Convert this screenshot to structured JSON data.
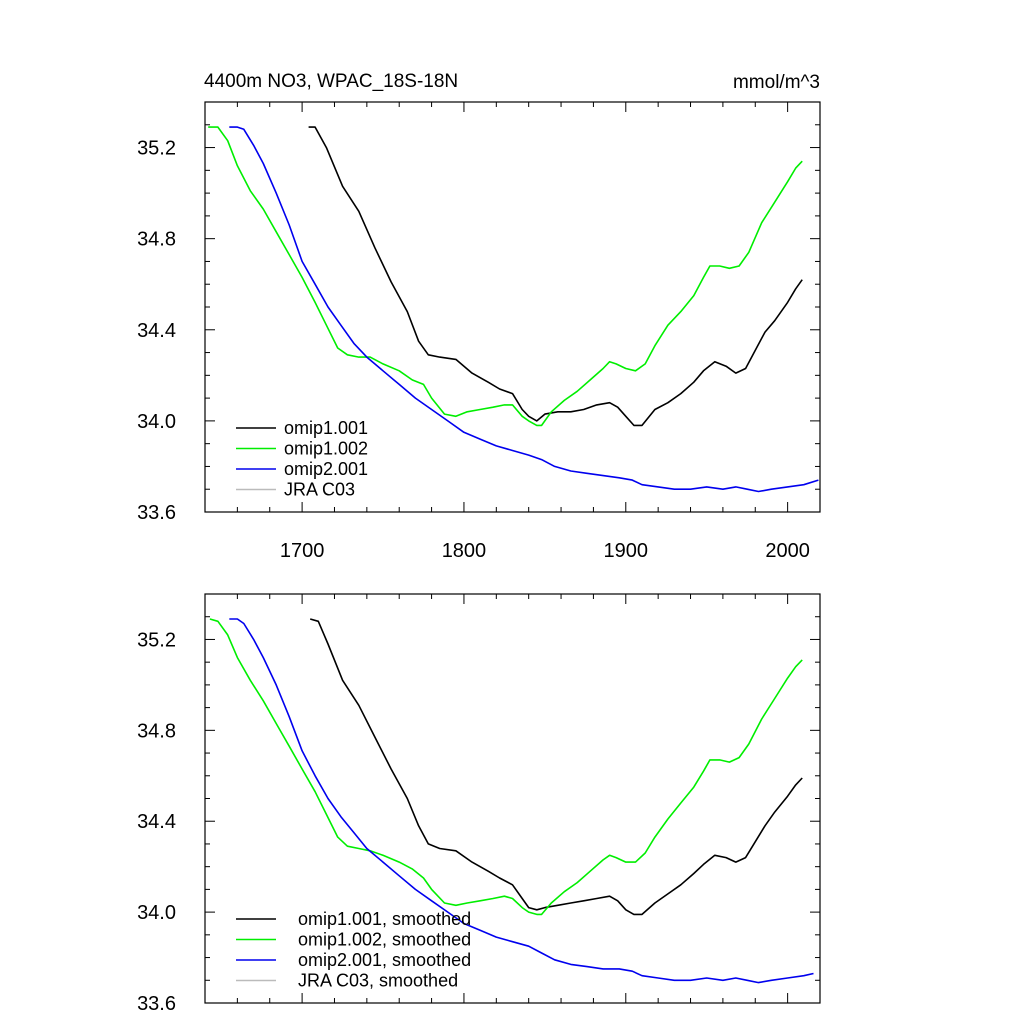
{
  "figure": {
    "title_left": "4400m NO3, WPAC_18S-18N",
    "title_right": "mmol/m^3"
  },
  "chart_data": [
    {
      "type": "line",
      "title": "4400m NO3, WPAC_18S-18N",
      "units": "mmol/m^3",
      "xlim": [
        1640,
        2020
      ],
      "ylim": [
        33.6,
        35.4
      ],
      "x_ticks": [
        1700,
        1800,
        1900,
        2000
      ],
      "x_tick_labels": [
        "1700",
        "1800",
        "1900",
        "2000"
      ],
      "y_ticks": [
        33.6,
        34.0,
        34.4,
        34.8,
        35.2
      ],
      "y_tick_labels": [
        "33.6",
        "34.0",
        "34.4",
        "34.8",
        "35.2"
      ],
      "grid": false,
      "legend_position": "bottom-left",
      "series": [
        {
          "name": "omip1.001",
          "color": "#000000",
          "x": [
            1704,
            1708,
            1715,
            1725,
            1735,
            1745,
            1755,
            1765,
            1772,
            1778,
            1785,
            1795,
            1805,
            1815,
            1822,
            1830,
            1836,
            1840,
            1845,
            1850,
            1858,
            1866,
            1874,
            1882,
            1890,
            1895,
            1900,
            1905,
            1910,
            1918,
            1926,
            1934,
            1942,
            1948,
            1955,
            1962,
            1968,
            1974,
            1980,
            1986,
            1992,
            2000,
            2005,
            2009
          ],
          "y": [
            35.29,
            35.29,
            35.2,
            35.03,
            34.92,
            34.76,
            34.61,
            34.48,
            34.35,
            34.29,
            34.28,
            34.27,
            34.21,
            34.17,
            34.14,
            34.12,
            34.05,
            34.02,
            34.0,
            34.03,
            34.04,
            34.04,
            34.05,
            34.07,
            34.08,
            34.06,
            34.02,
            33.98,
            33.98,
            34.05,
            34.08,
            34.12,
            34.17,
            34.22,
            34.26,
            34.24,
            34.21,
            34.23,
            34.31,
            34.39,
            34.44,
            34.52,
            34.58,
            34.62
          ]
        },
        {
          "name": "omip1.002",
          "color": "#00ee00",
          "x": [
            1642,
            1648,
            1654,
            1660,
            1668,
            1676,
            1684,
            1692,
            1700,
            1708,
            1715,
            1722,
            1728,
            1735,
            1742,
            1750,
            1760,
            1768,
            1775,
            1780,
            1788,
            1795,
            1802,
            1810,
            1818,
            1825,
            1830,
            1836,
            1840,
            1845,
            1848,
            1854,
            1862,
            1870,
            1878,
            1886,
            1890,
            1894,
            1900,
            1906,
            1912,
            1918,
            1926,
            1934,
            1942,
            1948,
            1952,
            1958,
            1964,
            1970,
            1976,
            1984,
            1992,
            2000,
            2005,
            2009
          ],
          "y": [
            35.29,
            35.29,
            35.23,
            35.12,
            35.01,
            34.93,
            34.83,
            34.73,
            34.63,
            34.52,
            34.42,
            34.32,
            34.29,
            34.28,
            34.28,
            34.25,
            34.22,
            34.18,
            34.16,
            34.1,
            34.03,
            34.02,
            34.04,
            34.05,
            34.06,
            34.07,
            34.07,
            34.02,
            34.0,
            33.98,
            33.98,
            34.04,
            34.09,
            34.13,
            34.18,
            34.23,
            34.26,
            34.25,
            34.23,
            34.22,
            34.25,
            34.33,
            34.42,
            34.48,
            34.55,
            34.63,
            34.68,
            34.68,
            34.67,
            34.68,
            34.74,
            34.87,
            34.96,
            35.05,
            35.11,
            35.14
          ]
        },
        {
          "name": "omip2.001",
          "color": "#0000ee",
          "x": [
            1655,
            1660,
            1664,
            1670,
            1676,
            1684,
            1692,
            1700,
            1708,
            1716,
            1724,
            1732,
            1740,
            1750,
            1760,
            1770,
            1780,
            1790,
            1800,
            1810,
            1820,
            1830,
            1840,
            1848,
            1856,
            1866,
            1876,
            1886,
            1896,
            1904,
            1910,
            1920,
            1930,
            1940,
            1950,
            1960,
            1968,
            1975,
            1982,
            1990,
            2000,
            2010,
            2019
          ],
          "y": [
            35.29,
            35.29,
            35.28,
            35.21,
            35.13,
            35.0,
            34.86,
            34.7,
            34.6,
            34.5,
            34.42,
            34.34,
            34.28,
            34.22,
            34.16,
            34.1,
            34.05,
            34.0,
            33.95,
            33.92,
            33.89,
            33.87,
            33.85,
            33.83,
            33.8,
            33.78,
            33.77,
            33.76,
            33.75,
            33.74,
            33.72,
            33.71,
            33.7,
            33.7,
            33.71,
            33.7,
            33.71,
            33.7,
            33.69,
            33.7,
            33.71,
            33.72,
            33.74
          ]
        },
        {
          "name": "JRA C03",
          "color": "#bbbbbb",
          "x": [],
          "y": []
        }
      ]
    },
    {
      "type": "line",
      "title": "",
      "xlim": [
        1640,
        2020
      ],
      "ylim": [
        33.6,
        35.4
      ],
      "x_ticks": [
        1700,
        1800,
        1900,
        2000
      ],
      "x_tick_labels": [],
      "y_ticks": [
        33.6,
        34.0,
        34.4,
        34.8,
        35.2
      ],
      "y_tick_labels": [
        "33.6",
        "34.0",
        "34.4",
        "34.8",
        "35.2"
      ],
      "grid": false,
      "legend_position": "bottom-left",
      "series": [
        {
          "name": "omip1.001, smoothed",
          "color": "#000000",
          "x": [
            1705,
            1710,
            1716,
            1725,
            1735,
            1745,
            1755,
            1765,
            1772,
            1778,
            1785,
            1795,
            1805,
            1815,
            1822,
            1830,
            1836,
            1840,
            1845,
            1850,
            1858,
            1866,
            1874,
            1882,
            1890,
            1895,
            1900,
            1905,
            1910,
            1918,
            1926,
            1934,
            1942,
            1948,
            1955,
            1962,
            1968,
            1974,
            1980,
            1986,
            1992,
            2000,
            2005,
            2009
          ],
          "y": [
            35.29,
            35.28,
            35.18,
            35.02,
            34.91,
            34.77,
            34.63,
            34.5,
            34.38,
            34.3,
            34.28,
            34.27,
            34.22,
            34.18,
            34.15,
            34.12,
            34.06,
            34.02,
            34.01,
            34.02,
            34.03,
            34.04,
            34.05,
            34.06,
            34.07,
            34.05,
            34.01,
            33.99,
            33.99,
            34.04,
            34.08,
            34.12,
            34.17,
            34.21,
            34.25,
            34.24,
            34.22,
            34.24,
            34.31,
            34.38,
            34.44,
            34.51,
            34.56,
            34.59
          ]
        },
        {
          "name": "omip1.002, smoothed",
          "color": "#00ee00",
          "x": [
            1643,
            1648,
            1654,
            1660,
            1668,
            1676,
            1684,
            1692,
            1700,
            1708,
            1715,
            1722,
            1728,
            1735,
            1742,
            1750,
            1760,
            1768,
            1775,
            1780,
            1788,
            1795,
            1802,
            1810,
            1818,
            1825,
            1830,
            1836,
            1840,
            1845,
            1848,
            1854,
            1862,
            1870,
            1878,
            1886,
            1890,
            1894,
            1900,
            1906,
            1912,
            1918,
            1926,
            1934,
            1942,
            1948,
            1952,
            1958,
            1964,
            1970,
            1976,
            1984,
            1992,
            2000,
            2005,
            2009
          ],
          "y": [
            35.29,
            35.28,
            35.22,
            35.12,
            35.02,
            34.93,
            34.83,
            34.73,
            34.63,
            34.53,
            34.43,
            34.33,
            34.29,
            34.28,
            34.27,
            34.25,
            34.22,
            34.19,
            34.15,
            34.1,
            34.04,
            34.03,
            34.04,
            34.05,
            34.06,
            34.07,
            34.06,
            34.02,
            34.0,
            33.99,
            33.99,
            34.04,
            34.09,
            34.13,
            34.18,
            34.23,
            34.25,
            34.24,
            34.22,
            34.22,
            34.26,
            34.33,
            34.41,
            34.48,
            34.55,
            34.62,
            34.67,
            34.67,
            34.66,
            34.68,
            34.74,
            34.85,
            34.94,
            35.03,
            35.08,
            35.11
          ]
        },
        {
          "name": "omip2.001, smoothed",
          "color": "#0000ee",
          "x": [
            1655,
            1660,
            1664,
            1670,
            1676,
            1684,
            1692,
            1700,
            1708,
            1716,
            1724,
            1732,
            1740,
            1750,
            1760,
            1770,
            1780,
            1790,
            1800,
            1810,
            1820,
            1830,
            1840,
            1848,
            1856,
            1866,
            1876,
            1886,
            1896,
            1904,
            1910,
            1920,
            1930,
            1940,
            1950,
            1960,
            1968,
            1975,
            1982,
            1990,
            2000,
            2010,
            2016
          ],
          "y": [
            35.29,
            35.29,
            35.27,
            35.2,
            35.12,
            35.0,
            34.86,
            34.71,
            34.6,
            34.5,
            34.42,
            34.35,
            34.28,
            34.22,
            34.16,
            34.1,
            34.05,
            34.0,
            33.95,
            33.92,
            33.89,
            33.87,
            33.85,
            33.82,
            33.79,
            33.77,
            33.76,
            33.75,
            33.75,
            33.74,
            33.72,
            33.71,
            33.7,
            33.7,
            33.71,
            33.7,
            33.71,
            33.7,
            33.69,
            33.7,
            33.71,
            33.72,
            33.73
          ]
        },
        {
          "name": "JRA C03, smoothed",
          "color": "#bbbbbb",
          "x": [],
          "y": []
        }
      ]
    }
  ]
}
